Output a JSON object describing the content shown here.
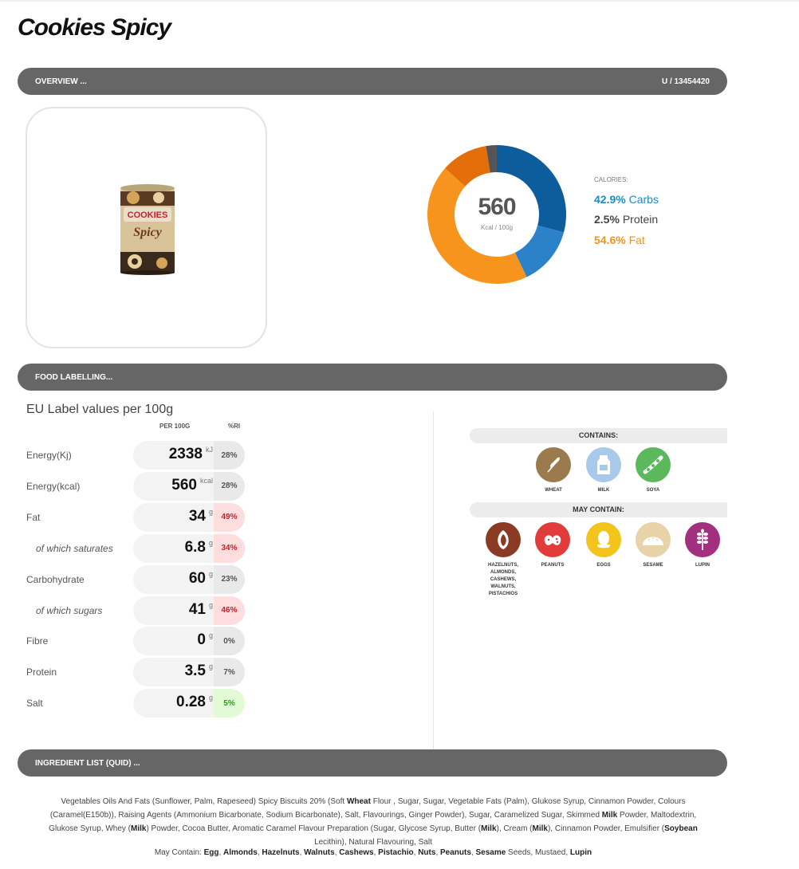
{
  "page": {
    "title": "Cookies Spicy"
  },
  "overview": {
    "label": "OVERVIEW ...",
    "code": "U / 13454420"
  },
  "product": {
    "image_alt": "COOKIES Spicy"
  },
  "calories": {
    "label": "CALORIES:",
    "value": "560",
    "unit": "Kcal / 100g",
    "carbs_pct": "42.9%",
    "carbs_label": "Carbs",
    "protein_pct": "2.5%",
    "protein_label": "Protein",
    "fat_pct": "54.6%",
    "fat_label": "Fat",
    "colors": {
      "carbs": "#0d5c9c",
      "carbs_light": "#2b82c9",
      "fat": "#f7941d",
      "fat_dark": "#e46f0a",
      "protein": "#555555"
    }
  },
  "chart_data": {
    "type": "pie",
    "title": "",
    "categories": [
      "Carbs",
      "Protein",
      "Fat"
    ],
    "values": [
      42.9,
      2.5,
      54.6
    ],
    "center_value": 560,
    "center_unit": "Kcal / 100g"
  },
  "food_labelling": {
    "label": "FOOD LABELLING...",
    "eu_title": "EU Label values per 100g",
    "col_per": "PER 100G",
    "col_ri": "%RI",
    "rows": [
      {
        "label": "Energy(Kj)",
        "value": "2338",
        "unit": "kJ",
        "ri": "28%",
        "level": "low",
        "sub": false
      },
      {
        "label": "Energy(kcal)",
        "value": "560",
        "unit": "kcal",
        "ri": "28%",
        "level": "low",
        "sub": false
      },
      {
        "label": "Fat",
        "value": "34",
        "unit": "g",
        "ri": "49%",
        "level": "high",
        "sub": false
      },
      {
        "label": "of which saturates",
        "value": "6.8",
        "unit": "g",
        "ri": "34%",
        "level": "high",
        "sub": true
      },
      {
        "label": "Carbohydrate",
        "value": "60",
        "unit": "g",
        "ri": "23%",
        "level": "low",
        "sub": false
      },
      {
        "label": "of which sugars",
        "value": "41",
        "unit": "g",
        "ri": "46%",
        "level": "high",
        "sub": true
      },
      {
        "label": "Fibre",
        "value": "0",
        "unit": "g",
        "ri": "0%",
        "level": "low",
        "sub": false
      },
      {
        "label": "Protein",
        "value": "3.5",
        "unit": "g",
        "ri": "7%",
        "level": "low",
        "sub": false
      },
      {
        "label": "Salt",
        "value": "0.28",
        "unit": "g",
        "ri": "5%",
        "level": "good",
        "sub": false
      }
    ]
  },
  "allergens": {
    "contains_label": "CONTAINS:",
    "may_contain_label": "MAY CONTAIN:",
    "contains": [
      {
        "name": "WHEAT",
        "icon": "wheat-icon",
        "color": "#9b7a4e"
      },
      {
        "name": "MILK",
        "icon": "milk-icon",
        "color": "#a9c9ea"
      },
      {
        "name": "SOYA",
        "icon": "soya-icon",
        "color": "#5cb85c"
      }
    ],
    "may_contain": [
      {
        "name": "HAZELNUTS, ALMONDS, CASHEWS, WALNUTS, PISTACHIOS",
        "icon": "nuts-icon",
        "color": "#8b3b24"
      },
      {
        "name": "PEANUTS",
        "icon": "peanut-icon",
        "color": "#e23b3b"
      },
      {
        "name": "EGGS",
        "icon": "egg-icon",
        "color": "#f2c41c"
      },
      {
        "name": "SESAME",
        "icon": "sesame-icon",
        "color": "#e8d2a8"
      },
      {
        "name": "LUPIN",
        "icon": "lupin-icon",
        "color": "#a3307f"
      }
    ]
  },
  "ingredients": {
    "label": "INGREDIENT LIST (QUID) ...",
    "text_parts": [
      [
        "Vegetables Oils And Fats (Sunflower, Palm, Rapeseed) Spicy Biscuits 20% (Soft ",
        false
      ],
      [
        "Wheat",
        true
      ],
      [
        " Flour , Sugar, Sugar, Vegetable Fats (Palm), Glukose Syrup, Cinnamon Powder, Colours (Caramel(E150b)), Raising Agents (Ammonium Bicarbonate, Sodium Bicarbonate), Salt, Flavourings, Ginger Powder), Sugar, Caramelized Sugar, Skimmed ",
        false
      ],
      [
        "Milk",
        true
      ],
      [
        " Powder, Maltodextrin, Glukose Syrup, Whey (",
        false
      ],
      [
        "Milk",
        true
      ],
      [
        ") Powder, Cocoa Butter, Aromatic Caramel Flavour Preparation (Sugar, Glycose Syrup, Butter (",
        false
      ],
      [
        "Milk",
        true
      ],
      [
        "), Cream (",
        false
      ],
      [
        "Milk",
        true
      ],
      [
        "), Cinnamon Powder, Emulsifier (",
        false
      ],
      [
        "Soybean",
        true
      ],
      [
        " Lecithin), Natural Flavouring, Salt",
        false
      ]
    ],
    "may_parts": [
      [
        "May Contain: ",
        false
      ],
      [
        "Egg",
        true
      ],
      [
        ", ",
        false
      ],
      [
        "Almonds",
        true
      ],
      [
        ", ",
        false
      ],
      [
        "Hazelnuts",
        true
      ],
      [
        ", ",
        false
      ],
      [
        "Walnuts",
        true
      ],
      [
        ", ",
        false
      ],
      [
        "Cashews",
        true
      ],
      [
        ", ",
        false
      ],
      [
        "Pistachio",
        true
      ],
      [
        ", ",
        false
      ],
      [
        "Nuts",
        true
      ],
      [
        ", ",
        false
      ],
      [
        "Peanuts",
        true
      ],
      [
        ", ",
        false
      ],
      [
        "Sesame",
        true
      ],
      [
        " Seeds, Mustaed, ",
        false
      ],
      [
        "Lupin",
        true
      ]
    ]
  }
}
